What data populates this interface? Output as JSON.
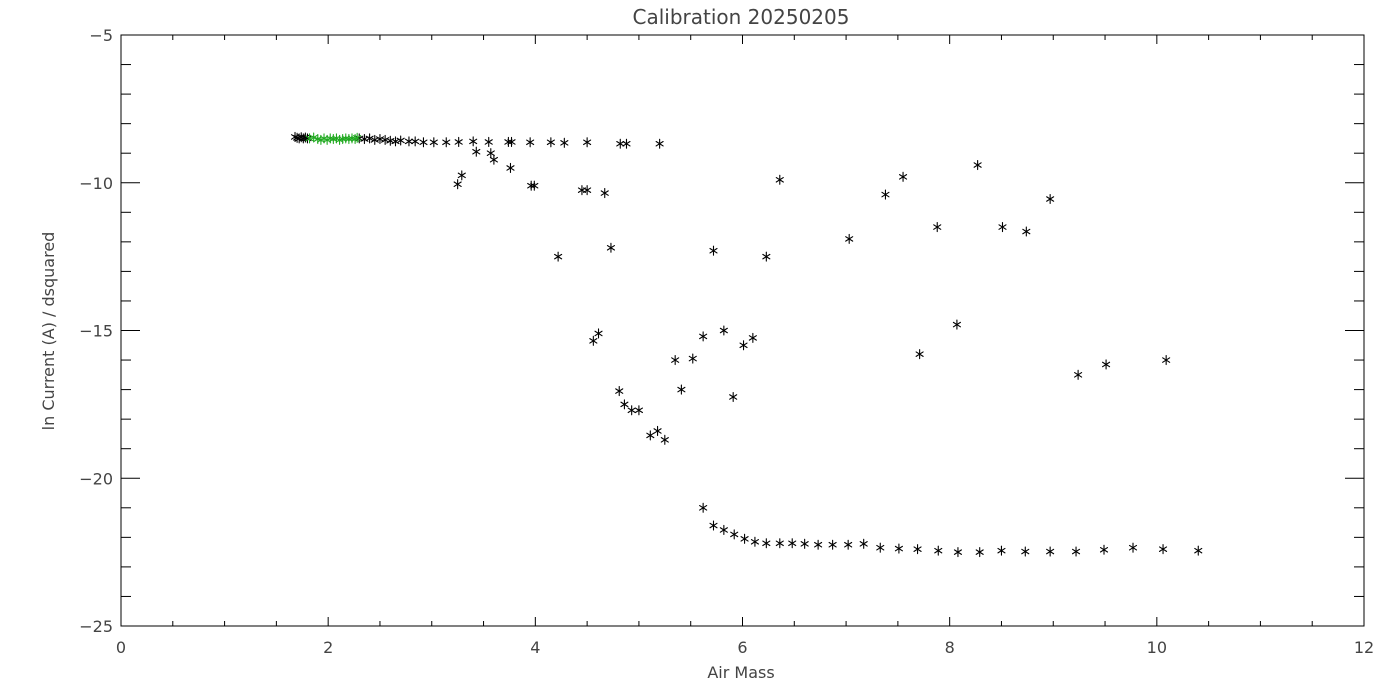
{
  "chart_data": {
    "type": "scatter",
    "title": "Calibration 20250205",
    "xlabel": "Air Mass",
    "ylabel": "ln Current (A) / dsquared",
    "xlim": [
      0,
      12
    ],
    "ylim": [
      -25,
      -5
    ],
    "xticks": [
      0,
      2,
      4,
      6,
      8,
      10,
      12
    ],
    "yticks": [
      -25,
      -20,
      -15,
      -10,
      -5
    ],
    "x_minor_step": 0.5,
    "y_minor_step": 1,
    "grid": false,
    "marker": "asterisk",
    "colors": {
      "main": "#000000",
      "highlight": "#22aa22",
      "axes": "#000000",
      "text": "#444444"
    },
    "series": [
      {
        "color": "#000000",
        "points": [
          [
            1.68,
            -8.45
          ],
          [
            1.7,
            -8.48
          ],
          [
            1.72,
            -8.5
          ],
          [
            1.74,
            -8.46
          ],
          [
            1.76,
            -8.5
          ],
          [
            1.78,
            -8.47
          ],
          [
            1.8,
            -8.5
          ],
          [
            2.3,
            -8.5
          ],
          [
            2.35,
            -8.52
          ],
          [
            2.4,
            -8.5
          ],
          [
            2.45,
            -8.55
          ],
          [
            2.5,
            -8.52
          ],
          [
            2.55,
            -8.55
          ],
          [
            2.6,
            -8.58
          ],
          [
            2.65,
            -8.6
          ],
          [
            2.7,
            -8.57
          ],
          [
            2.78,
            -8.6
          ],
          [
            2.84,
            -8.6
          ],
          [
            2.92,
            -8.63
          ],
          [
            3.02,
            -8.63
          ],
          [
            3.14,
            -8.63
          ],
          [
            3.26,
            -8.62
          ],
          [
            3.4,
            -8.6
          ],
          [
            3.55,
            -8.62
          ],
          [
            3.74,
            -8.62
          ],
          [
            3.77,
            -8.62
          ],
          [
            3.95,
            -8.63
          ],
          [
            4.15,
            -8.63
          ],
          [
            4.28,
            -8.65
          ],
          [
            4.5,
            -8.63
          ],
          [
            4.82,
            -8.68
          ],
          [
            4.88,
            -8.68
          ],
          [
            5.2,
            -8.68
          ],
          [
            3.25,
            -10.05
          ],
          [
            3.29,
            -9.75
          ],
          [
            3.43,
            -8.95
          ],
          [
            3.57,
            -9.0
          ],
          [
            3.6,
            -9.22
          ],
          [
            3.76,
            -9.5
          ],
          [
            3.96,
            -10.1
          ],
          [
            3.99,
            -10.1
          ],
          [
            4.45,
            -10.25
          ],
          [
            4.5,
            -10.25
          ],
          [
            4.67,
            -10.35
          ],
          [
            4.22,
            -12.5
          ],
          [
            4.73,
            -12.2
          ],
          [
            4.56,
            -15.35
          ],
          [
            4.61,
            -15.1
          ],
          [
            4.81,
            -17.05
          ],
          [
            4.86,
            -17.5
          ],
          [
            4.93,
            -17.7
          ],
          [
            5.0,
            -17.7
          ],
          [
            5.11,
            -18.55
          ],
          [
            5.18,
            -18.4
          ],
          [
            5.25,
            -18.7
          ],
          [
            5.35,
            -16.0
          ],
          [
            5.41,
            -17.0
          ],
          [
            5.52,
            -15.95
          ],
          [
            5.62,
            -15.2
          ],
          [
            5.72,
            -12.3
          ],
          [
            5.82,
            -15.0
          ],
          [
            5.91,
            -17.25
          ],
          [
            6.01,
            -15.5
          ],
          [
            6.1,
            -15.25
          ],
          [
            6.23,
            -12.5
          ],
          [
            6.36,
            -9.9
          ],
          [
            7.03,
            -11.9
          ],
          [
            7.38,
            -10.4
          ],
          [
            7.55,
            -9.8
          ],
          [
            7.88,
            -11.5
          ],
          [
            7.71,
            -15.8
          ],
          [
            8.07,
            -14.8
          ],
          [
            8.27,
            -9.4
          ],
          [
            8.51,
            -11.5
          ],
          [
            8.74,
            -11.65
          ],
          [
            8.97,
            -10.55
          ],
          [
            9.24,
            -16.5
          ],
          [
            9.51,
            -16.15
          ],
          [
            10.09,
            -16.0
          ],
          [
            5.62,
            -21.0
          ],
          [
            5.72,
            -21.6
          ],
          [
            5.82,
            -21.75
          ],
          [
            5.92,
            -21.9
          ],
          [
            6.02,
            -22.05
          ],
          [
            6.12,
            -22.15
          ],
          [
            6.23,
            -22.2
          ],
          [
            6.36,
            -22.2
          ],
          [
            6.48,
            -22.2
          ],
          [
            6.6,
            -22.22
          ],
          [
            6.73,
            -22.25
          ],
          [
            6.87,
            -22.25
          ],
          [
            7.02,
            -22.25
          ],
          [
            7.17,
            -22.22
          ],
          [
            7.33,
            -22.35
          ],
          [
            7.51,
            -22.38
          ],
          [
            7.69,
            -22.4
          ],
          [
            7.89,
            -22.45
          ],
          [
            8.08,
            -22.5
          ],
          [
            8.29,
            -22.5
          ],
          [
            8.5,
            -22.45
          ],
          [
            8.73,
            -22.48
          ],
          [
            8.97,
            -22.48
          ],
          [
            9.22,
            -22.48
          ],
          [
            9.49,
            -22.42
          ],
          [
            9.77,
            -22.35
          ],
          [
            10.06,
            -22.4
          ],
          [
            10.4,
            -22.45
          ]
        ]
      },
      {
        "color": "#22aa22",
        "points": [
          [
            1.82,
            -8.5
          ],
          [
            1.86,
            -8.47
          ],
          [
            1.9,
            -8.52
          ],
          [
            1.93,
            -8.55
          ],
          [
            1.96,
            -8.5
          ],
          [
            1.99,
            -8.55
          ],
          [
            2.02,
            -8.5
          ],
          [
            2.05,
            -8.52
          ],
          [
            2.08,
            -8.5
          ],
          [
            2.11,
            -8.55
          ],
          [
            2.14,
            -8.52
          ],
          [
            2.17,
            -8.5
          ],
          [
            2.2,
            -8.52
          ],
          [
            2.23,
            -8.5
          ],
          [
            2.26,
            -8.52
          ],
          [
            2.28,
            -8.48
          ]
        ]
      }
    ]
  }
}
